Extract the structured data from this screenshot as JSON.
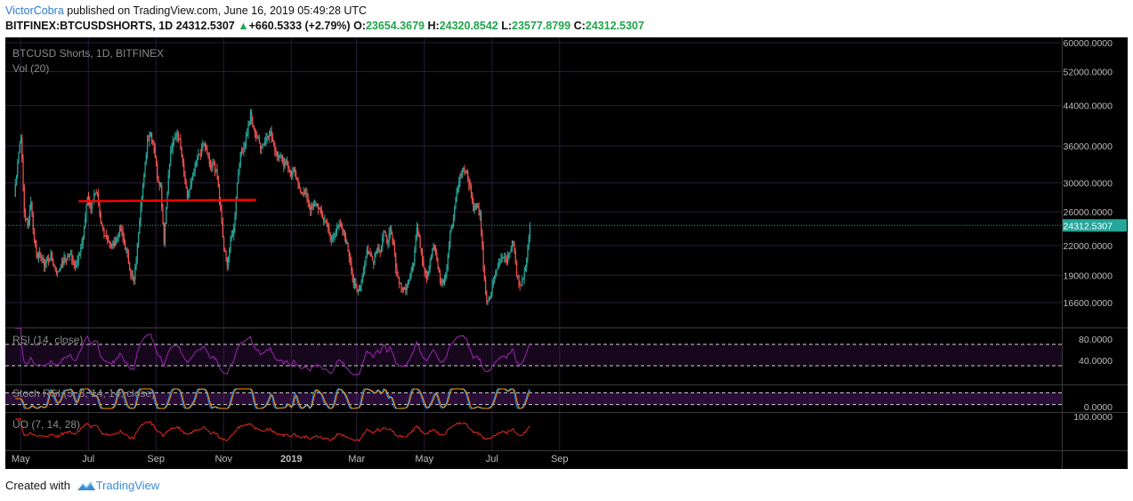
{
  "header": {
    "author": "VictorCobra",
    "published": "published on TradingView.com, June 16, 2019 05:49:28 UTC",
    "symbol": "BITFINEX:BTCUSDSHORTS, 1D",
    "last": "24312.5307",
    "change_arrow": "▲",
    "change": "+660.5333 (+2.79%)",
    "o_label": "O:",
    "o_value": "23654.3679",
    "h_label": "H:",
    "h_value": "24320.8542",
    "l_label": "L:",
    "l_value": "23577.8799",
    "c_label": "C:",
    "c_value": "24312.5307"
  },
  "footer": {
    "prefix": "Created with",
    "brand": "TradingView",
    "logo_icon": "tradingview-logo-icon"
  },
  "colors": {
    "background": "#000000",
    "grid": "#2a1a3a",
    "up": "#26a69a",
    "down": "#ef5350",
    "rsi": "#9c27b0",
    "stoch_k": "#2196f3",
    "stoch_d": "#ff9800",
    "uo": "#e5271b",
    "trendline": "#ff0000",
    "price_line": "#26a69a"
  },
  "chart_data": {
    "type": "candlestick",
    "main_legend": "BTCUSD Shorts, 1D, BITFINEX",
    "vol_legend": "Vol (20)",
    "price_axis_ticks": [
      "60000.0000",
      "52000.0000",
      "44000.0000",
      "36000.0000",
      "30000.0000",
      "26000.0000",
      "22000.0000",
      "19000.0000",
      "16600.0000"
    ],
    "price_axis_values": [
      60000,
      52000,
      44000,
      36000,
      30000,
      26000,
      22000,
      19000,
      16600
    ],
    "price_scale": "log",
    "last_price_label": "24312.5307",
    "last_price": 24312.5307,
    "time_labels": [
      "May",
      "Jul",
      "Sep",
      "Nov",
      "2019",
      "Mar",
      "May",
      "Jul",
      "Sep"
    ],
    "time_label_indices": [
      9,
      70,
      131,
      192,
      253,
      312,
      373,
      434,
      495
    ],
    "series_close": [
      28000,
      33500,
      38000,
      26000,
      24200,
      27500,
      22500,
      21000,
      20800,
      20000,
      20500,
      21000,
      19800,
      19200,
      20000,
      20500,
      20800,
      21000,
      20000,
      20500,
      21500,
      24000,
      28000,
      26500,
      28500,
      28000,
      24500,
      23500,
      22800,
      22000,
      22300,
      23000,
      23800,
      22200,
      21000,
      19200,
      18500,
      22000,
      27000,
      31000,
      37000,
      38500,
      36000,
      31000,
      29500,
      22500,
      29000,
      35000,
      37000,
      38500,
      36000,
      32000,
      28000,
      29500,
      32000,
      34000,
      34500,
      36500,
      34500,
      32000,
      33000,
      31000,
      26000,
      21500,
      20200,
      22500,
      24000,
      30000,
      34500,
      36000,
      38500,
      42000,
      39000,
      37500,
      36000,
      36500,
      38000,
      38500,
      36000,
      34500,
      34500,
      33000,
      33500,
      31000,
      32000,
      30000,
      29000,
      28500,
      28000,
      26500,
      26800,
      27000,
      26000,
      25000,
      24800,
      22500,
      23000,
      24500,
      24000,
      23500,
      22000,
      20500,
      18200,
      17500,
      18000,
      19500,
      21500,
      21000,
      20500,
      21800,
      21500,
      23500,
      22500,
      23500,
      22000,
      19000,
      18200,
      17600,
      17900,
      19200,
      20500,
      24000,
      22000,
      20000,
      19000,
      20500,
      22000,
      20500,
      18500,
      18400,
      19500,
      23500,
      25000,
      29000,
      31000,
      32500,
      31500,
      29500,
      26500,
      26800,
      25500,
      20000,
      16500,
      17000,
      18500,
      19500,
      20500,
      21000,
      20500,
      21500,
      22500,
      19000,
      18300,
      18500,
      21000,
      24312.5307
    ],
    "trendline": {
      "x_start_index": 58,
      "x_end_index": 218,
      "value": 27400
    },
    "panes": [
      {
        "name": "RSI (14, close)",
        "levels": [
          "80.0000",
          "40.0000"
        ],
        "level_values": [
          80,
          40
        ],
        "bands": [
          70,
          30
        ]
      },
      {
        "name": "Stoch RSI (3, 3, 14, 14, close)",
        "levels": [
          "0.0000"
        ],
        "level_values": [
          0
        ],
        "bands": [
          80,
          20
        ]
      },
      {
        "name": "UO (7, 14, 28)",
        "levels": [
          "100.0000"
        ],
        "level_values": [
          100
        ]
      }
    ]
  }
}
